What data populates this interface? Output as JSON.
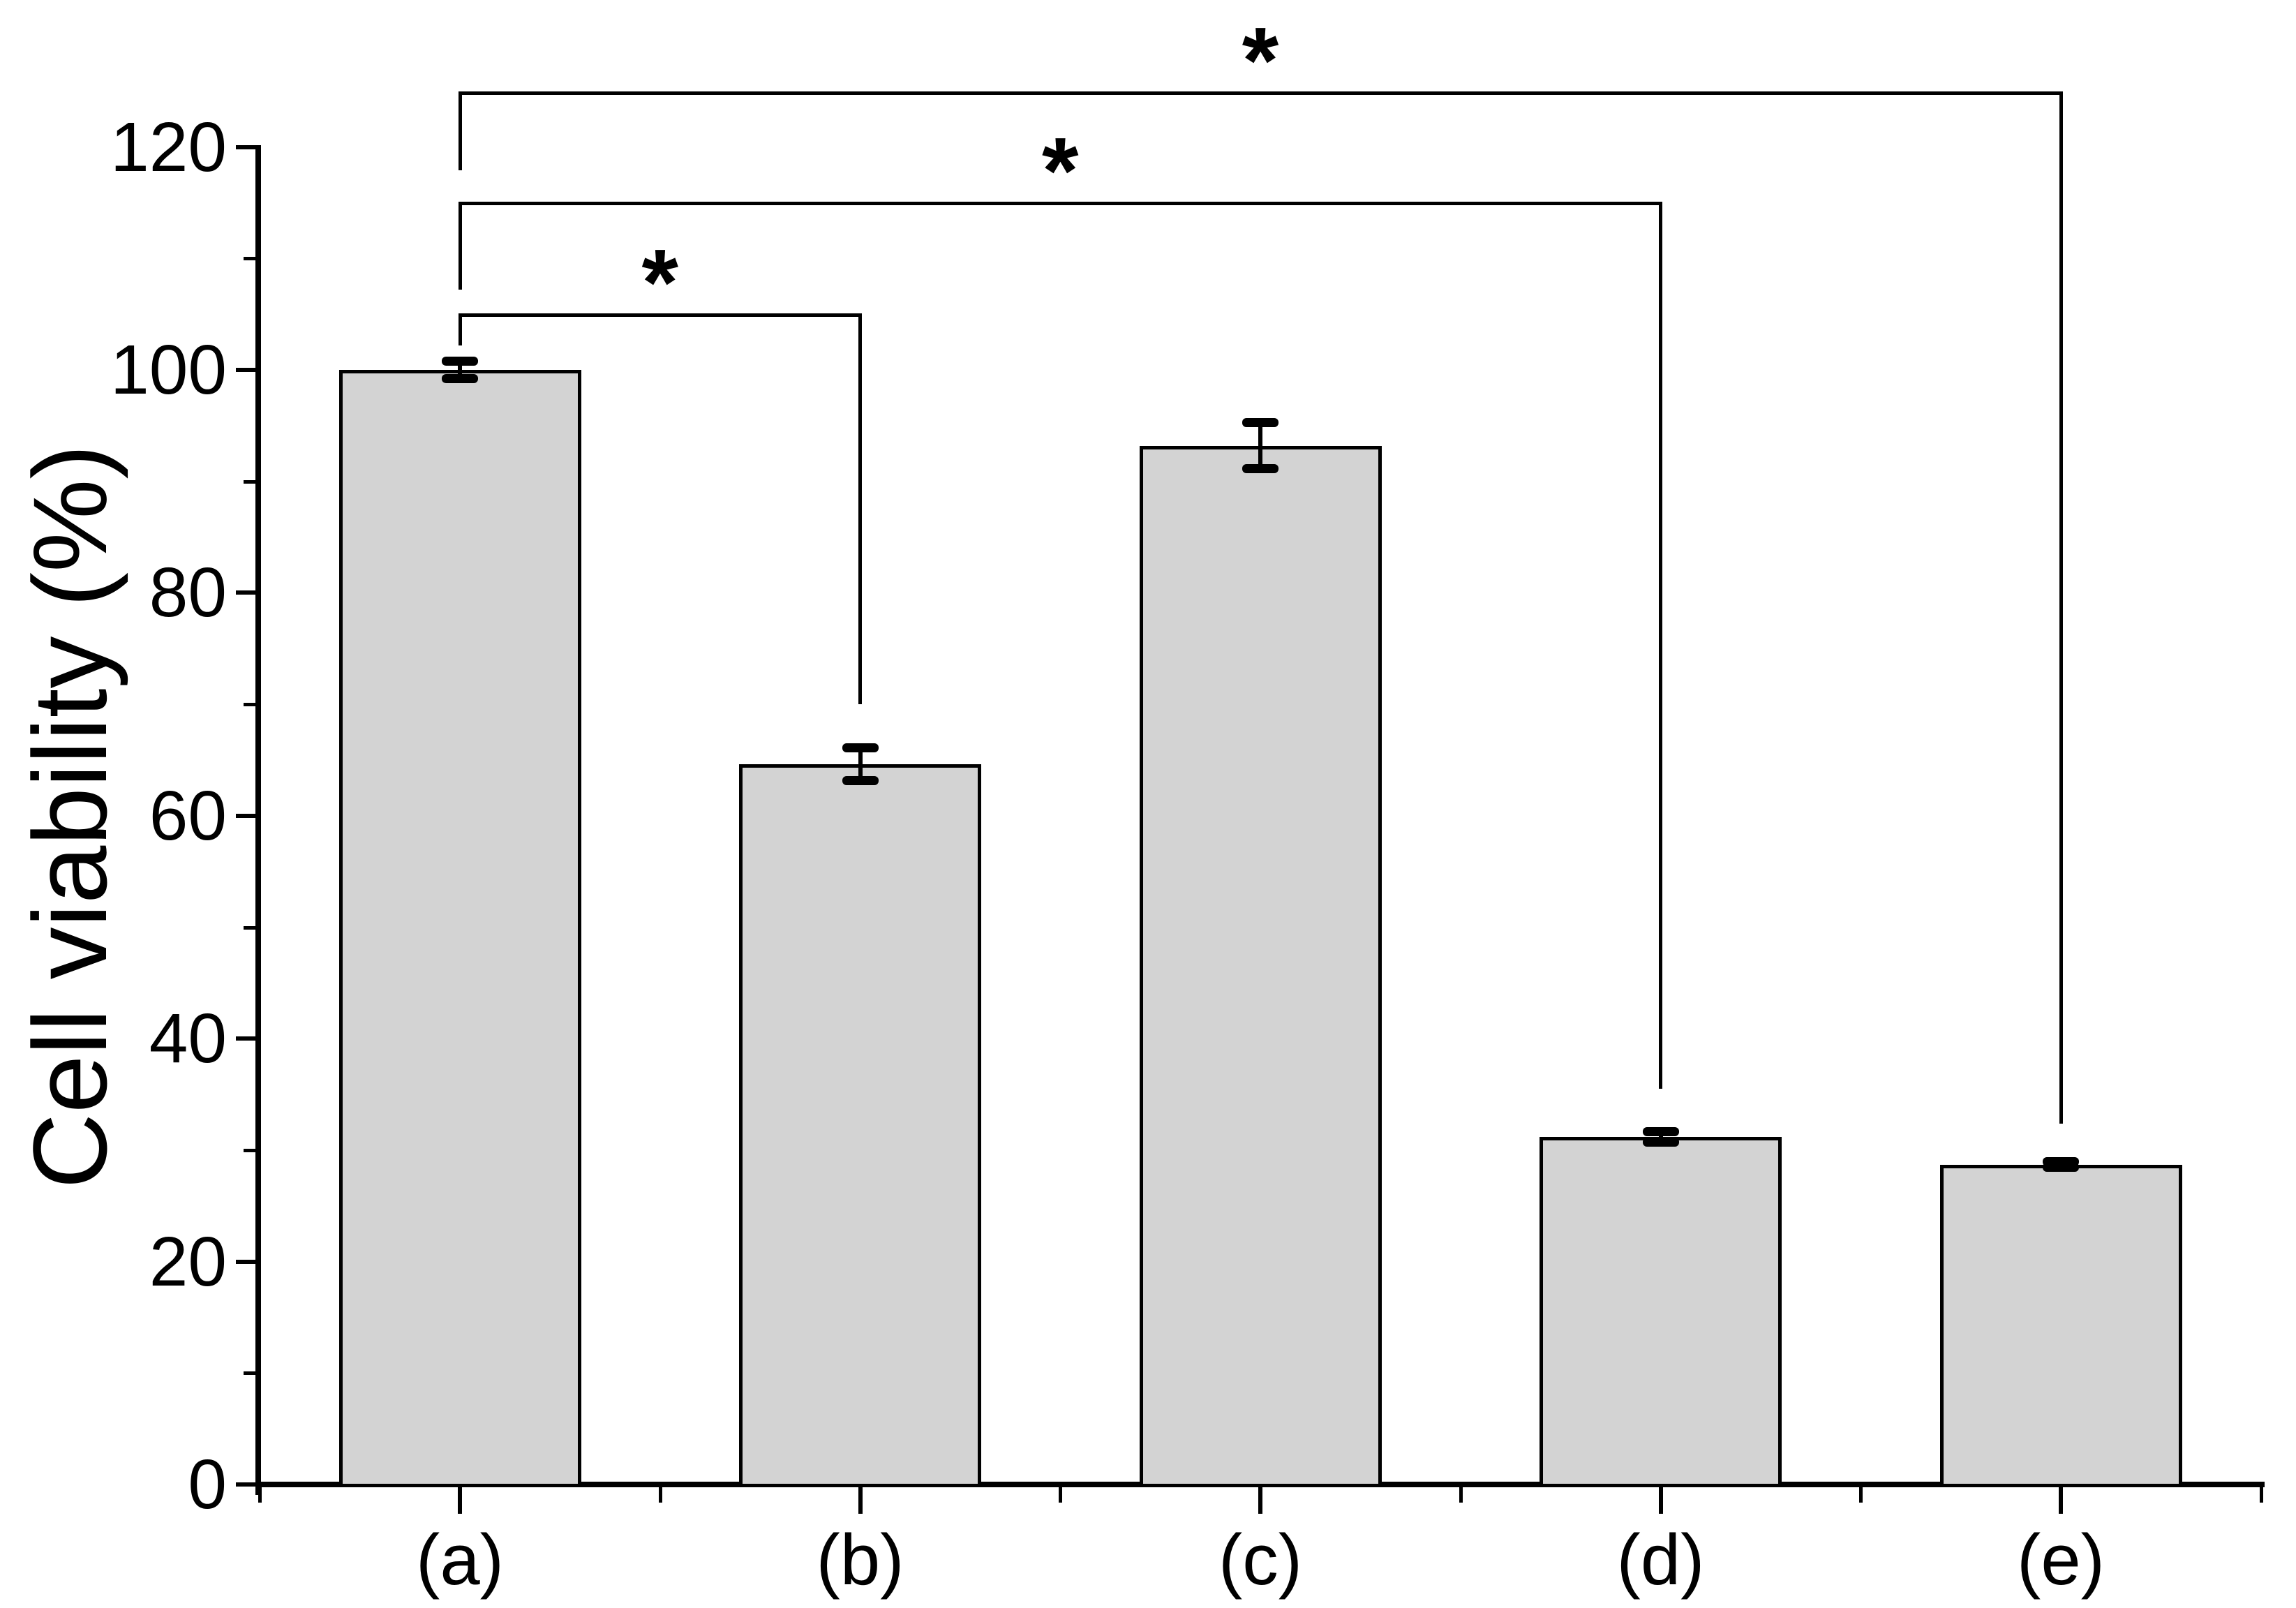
{
  "chart_data": {
    "type": "bar",
    "title": "",
    "xlabel": "",
    "ylabel": "Cell viability (%)",
    "categories": [
      "(a)",
      "(b)",
      "(c)",
      "(d)",
      "(e)"
    ],
    "values": [
      100.0,
      64.6,
      93.2,
      31.2,
      28.7
    ],
    "errors": [
      0.8,
      1.5,
      2.1,
      0.5,
      0.3
    ],
    "ylim": [
      0,
      120
    ],
    "y_major_ticks": [
      0,
      20,
      40,
      60,
      80,
      100,
      120
    ],
    "y_tick_labels": [
      "0",
      "20",
      "40",
      "60",
      "80",
      "100",
      "120"
    ],
    "y_minor_step": 10,
    "grid": "off",
    "legend": "none",
    "bar_fill_color": "#d3d3d3",
    "bar_edge_color": "#000000",
    "axis_color": "#000000",
    "significance_brackets": [
      {
        "from": "(a)",
        "to": "(b)",
        "label": "*",
        "height_value": 105.1,
        "left_drop_to_value": 102.2,
        "right_drop_to_value": 70.0
      },
      {
        "from": "(a)",
        "to": "(d)",
        "label": "*",
        "height_value": 115.1,
        "left_drop_to_value": 107.2,
        "right_drop_to_value": 35.5
      },
      {
        "from": "(a)",
        "to": "(e)",
        "label": "*",
        "height_value": 125.0,
        "left_drop_to_value": 117.9,
        "right_drop_to_value": 32.4
      }
    ]
  }
}
